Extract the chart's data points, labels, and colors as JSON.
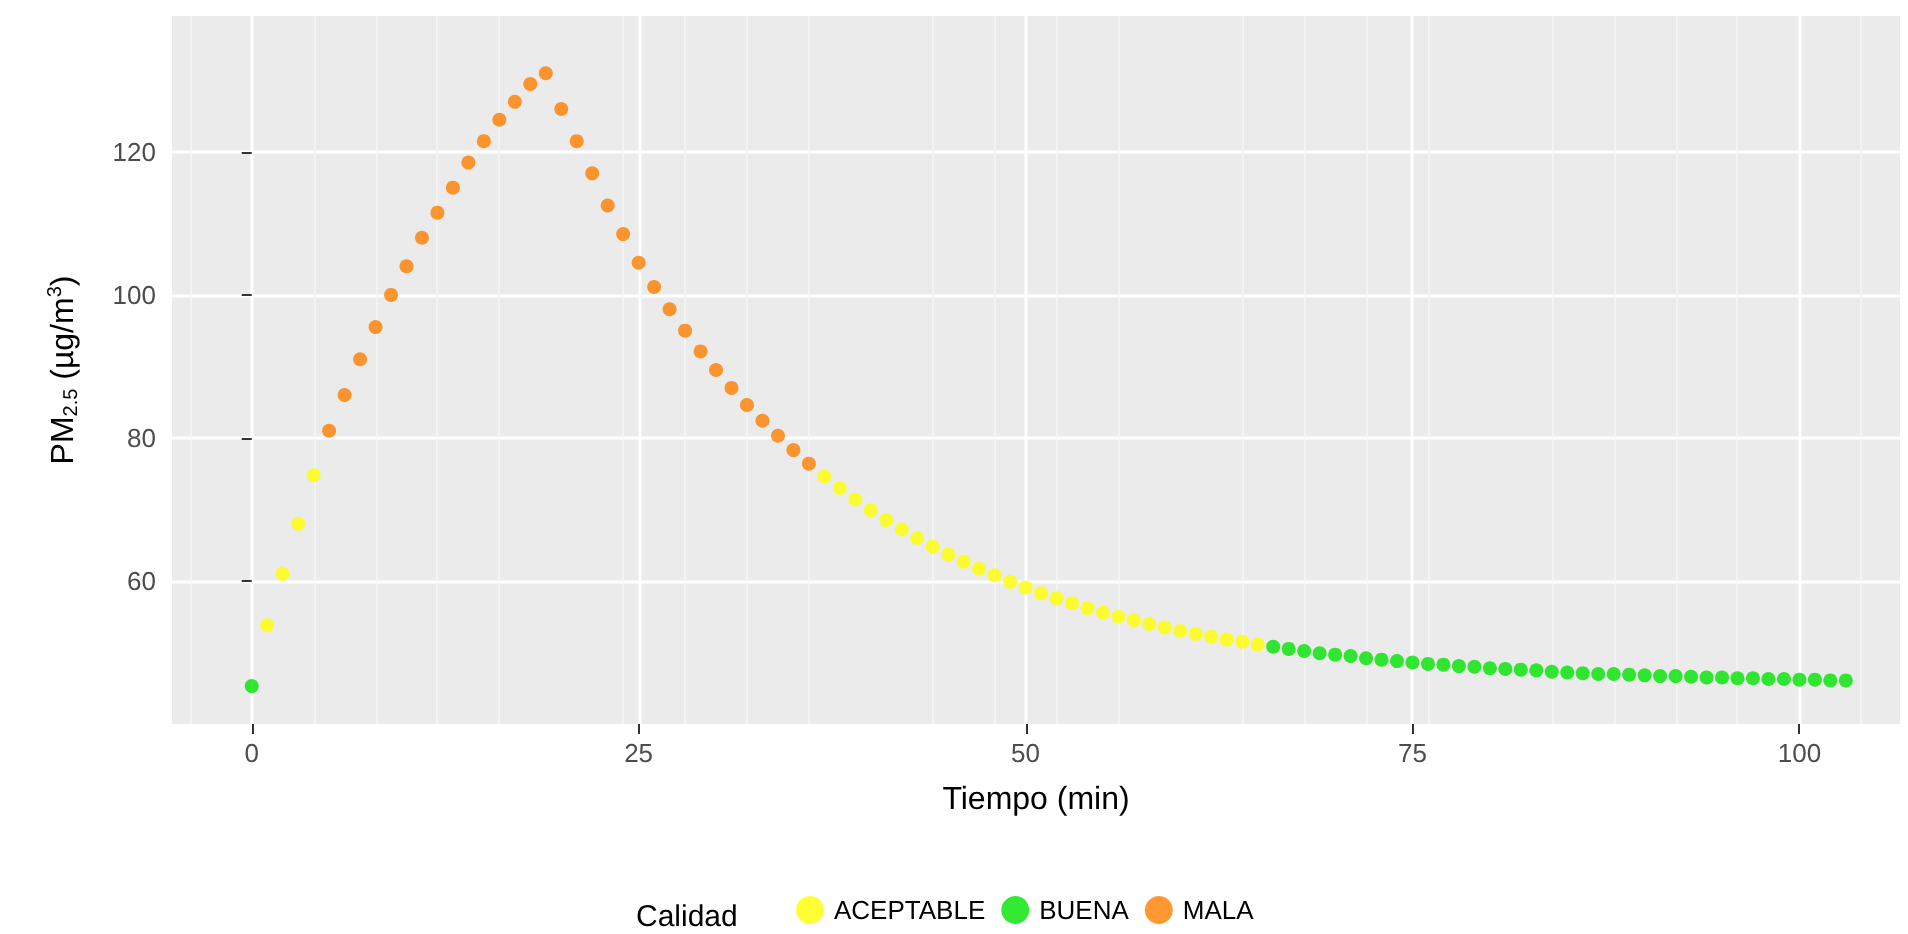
{
  "chart_data": {
    "type": "scatter",
    "xlabel": "Tiempo (min)",
    "ylabel": "PM$_{2.5}$ (µg/m$^{3}$)",
    "legend_title": "Calidad",
    "legend": "bottom",
    "grid": true,
    "marker": "circle",
    "xlim": [
      -5.15,
      106.5
    ],
    "xticks": [
      0,
      25,
      50,
      75,
      100
    ],
    "ylim": [
      40,
      139
    ],
    "yticks": [
      60,
      80,
      100,
      120
    ],
    "series": [
      {
        "name": "ACEPTABLE",
        "color": "#ffff00",
        "x": [
          1,
          2,
          3,
          4,
          37,
          38,
          39,
          40,
          41,
          42,
          43,
          44,
          45,
          46,
          47,
          48,
          49,
          50,
          51,
          52,
          53,
          54,
          55,
          56,
          57,
          58,
          59,
          60,
          61,
          62,
          63,
          64,
          65
        ],
        "values": [
          53.8,
          61,
          68,
          74.8,
          74.6,
          73.0,
          71.4,
          69.9,
          68.5,
          67.2,
          66.0,
          64.8,
          63.7,
          62.7,
          61.7,
          60.8,
          59.9,
          59.1,
          58.3,
          57.6,
          56.9,
          56.2,
          55.6,
          55.0,
          54.5,
          54.0,
          53.5,
          53.0,
          52.6,
          52.2,
          51.8,
          51.5,
          51.1
        ]
      },
      {
        "name": "BUENA",
        "color": "#00e400",
        "x": [
          0,
          66,
          67,
          68,
          69,
          70,
          71,
          72,
          73,
          74,
          75,
          76,
          77,
          78,
          79,
          80,
          81,
          82,
          83,
          84,
          85,
          86,
          87,
          88,
          89,
          90,
          91,
          92,
          93,
          94,
          95,
          96,
          97,
          98,
          99,
          100,
          101,
          102,
          103
        ],
        "values": [
          45.3,
          50.8,
          50.5,
          50.2,
          49.9,
          49.7,
          49.5,
          49.2,
          49.0,
          48.8,
          48.6,
          48.4,
          48.3,
          48.1,
          48.0,
          47.8,
          47.7,
          47.6,
          47.5,
          47.3,
          47.2,
          47.1,
          47.0,
          47.0,
          46.9,
          46.8,
          46.7,
          46.7,
          46.6,
          46.5,
          46.5,
          46.4,
          46.4,
          46.3,
          46.3,
          46.2,
          46.2,
          46.1,
          46.1
        ]
      },
      {
        "name": "MALA",
        "color": "#ff7e00",
        "x": [
          5,
          6,
          7,
          8,
          9,
          10,
          11,
          12,
          13,
          14,
          15,
          16,
          17,
          18,
          19,
          20,
          21,
          22,
          23,
          24,
          25,
          26,
          27,
          28,
          29,
          30,
          31,
          32,
          33,
          34,
          35,
          36
        ],
        "values": [
          81,
          86,
          91,
          95.5,
          100,
          104,
          108,
          111.5,
          115,
          118.5,
          121.5,
          124.5,
          127,
          129.5,
          131,
          126,
          121.5,
          117,
          112.5,
          108.5,
          104.5,
          101.1,
          98.0,
          95.0,
          92.1,
          89.5,
          87.0,
          84.6,
          82.4,
          80.3,
          78.3,
          76.4
        ]
      }
    ]
  }
}
